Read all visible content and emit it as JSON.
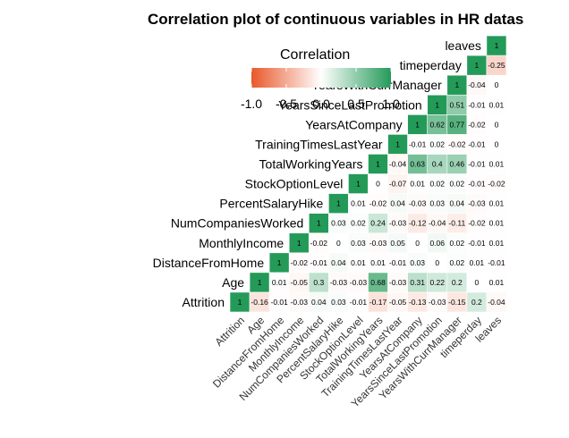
{
  "chart_data": {
    "type": "heatmap",
    "title": "Correlation plot of continuous variables in HR  datas",
    "variables": [
      "Attrition",
      "Age",
      "DistanceFromHome",
      "MonthlyIncome",
      "NumCompaniesWorked",
      "PercentSalaryHike",
      "StockOptionLevel",
      "TotalWorkingYears",
      "TrainingTimesLastYear",
      "YearsAtCompany",
      "YearsSinceLastPromotion",
      "YearsWithCurrManager",
      "timeperday",
      "leaves"
    ],
    "matrix": [
      [
        1,
        -0.16,
        -0.01,
        -0.03,
        0.04,
        0.03,
        -0.01,
        -0.17,
        -0.05,
        -0.13,
        -0.03,
        -0.15,
        0.2,
        -0.04
      ],
      [
        null,
        1,
        0.01,
        -0.05,
        0.3,
        -0.03,
        -0.03,
        0.68,
        -0.03,
        0.31,
        0.22,
        0.2,
        0,
        0.01
      ],
      [
        null,
        null,
        1,
        -0.02,
        -0.01,
        0.04,
        0.01,
        0.01,
        -0.01,
        0.03,
        0,
        0.02,
        0.01,
        -0.01
      ],
      [
        null,
        null,
        null,
        1,
        -0.02,
        0,
        0.03,
        -0.03,
        0.05,
        0,
        0.06,
        0.02,
        -0.01,
        0.01
      ],
      [
        null,
        null,
        null,
        null,
        1,
        0.03,
        0.02,
        0.24,
        -0.03,
        -0.12,
        -0.04,
        -0.11,
        -0.02,
        0.01
      ],
      [
        null,
        null,
        null,
        null,
        null,
        1,
        0.01,
        -0.02,
        0.04,
        -0.03,
        0.03,
        0.04,
        -0.03,
        0.01
      ],
      [
        null,
        null,
        null,
        null,
        null,
        null,
        1,
        0,
        -0.07,
        0.01,
        0.02,
        0.02,
        -0.01,
        -0.02
      ],
      [
        null,
        null,
        null,
        null,
        null,
        null,
        null,
        1,
        -0.04,
        0.63,
        0.4,
        0.46,
        -0.01,
        0.01
      ],
      [
        null,
        null,
        null,
        null,
        null,
        null,
        null,
        null,
        1,
        -0.01,
        0.02,
        -0.02,
        -0.01,
        0
      ],
      [
        null,
        null,
        null,
        null,
        null,
        null,
        null,
        null,
        null,
        1,
        0.62,
        0.77,
        -0.02,
        0
      ],
      [
        null,
        null,
        null,
        null,
        null,
        null,
        null,
        null,
        null,
        null,
        1,
        0.51,
        -0.01,
        0.01
      ],
      [
        null,
        null,
        null,
        null,
        null,
        null,
        null,
        null,
        null,
        null,
        null,
        1,
        -0.04,
        0
      ],
      [
        null,
        null,
        null,
        null,
        null,
        null,
        null,
        null,
        null,
        null,
        null,
        null,
        1,
        -0.25
      ],
      [
        null,
        null,
        null,
        null,
        null,
        null,
        null,
        null,
        null,
        null,
        null,
        null,
        null,
        1
      ]
    ],
    "legend": {
      "title": "Correlation",
      "ticks": [
        "-1.0",
        "-0.5",
        "0.0",
        "0.5",
        "1.0"
      ],
      "placement": "top-left",
      "colors": {
        "low": "#E8582A",
        "mid": "#FFFFFF",
        "high": "#249A59"
      }
    },
    "scale": [
      -1,
      1
    ],
    "grid": false
  }
}
